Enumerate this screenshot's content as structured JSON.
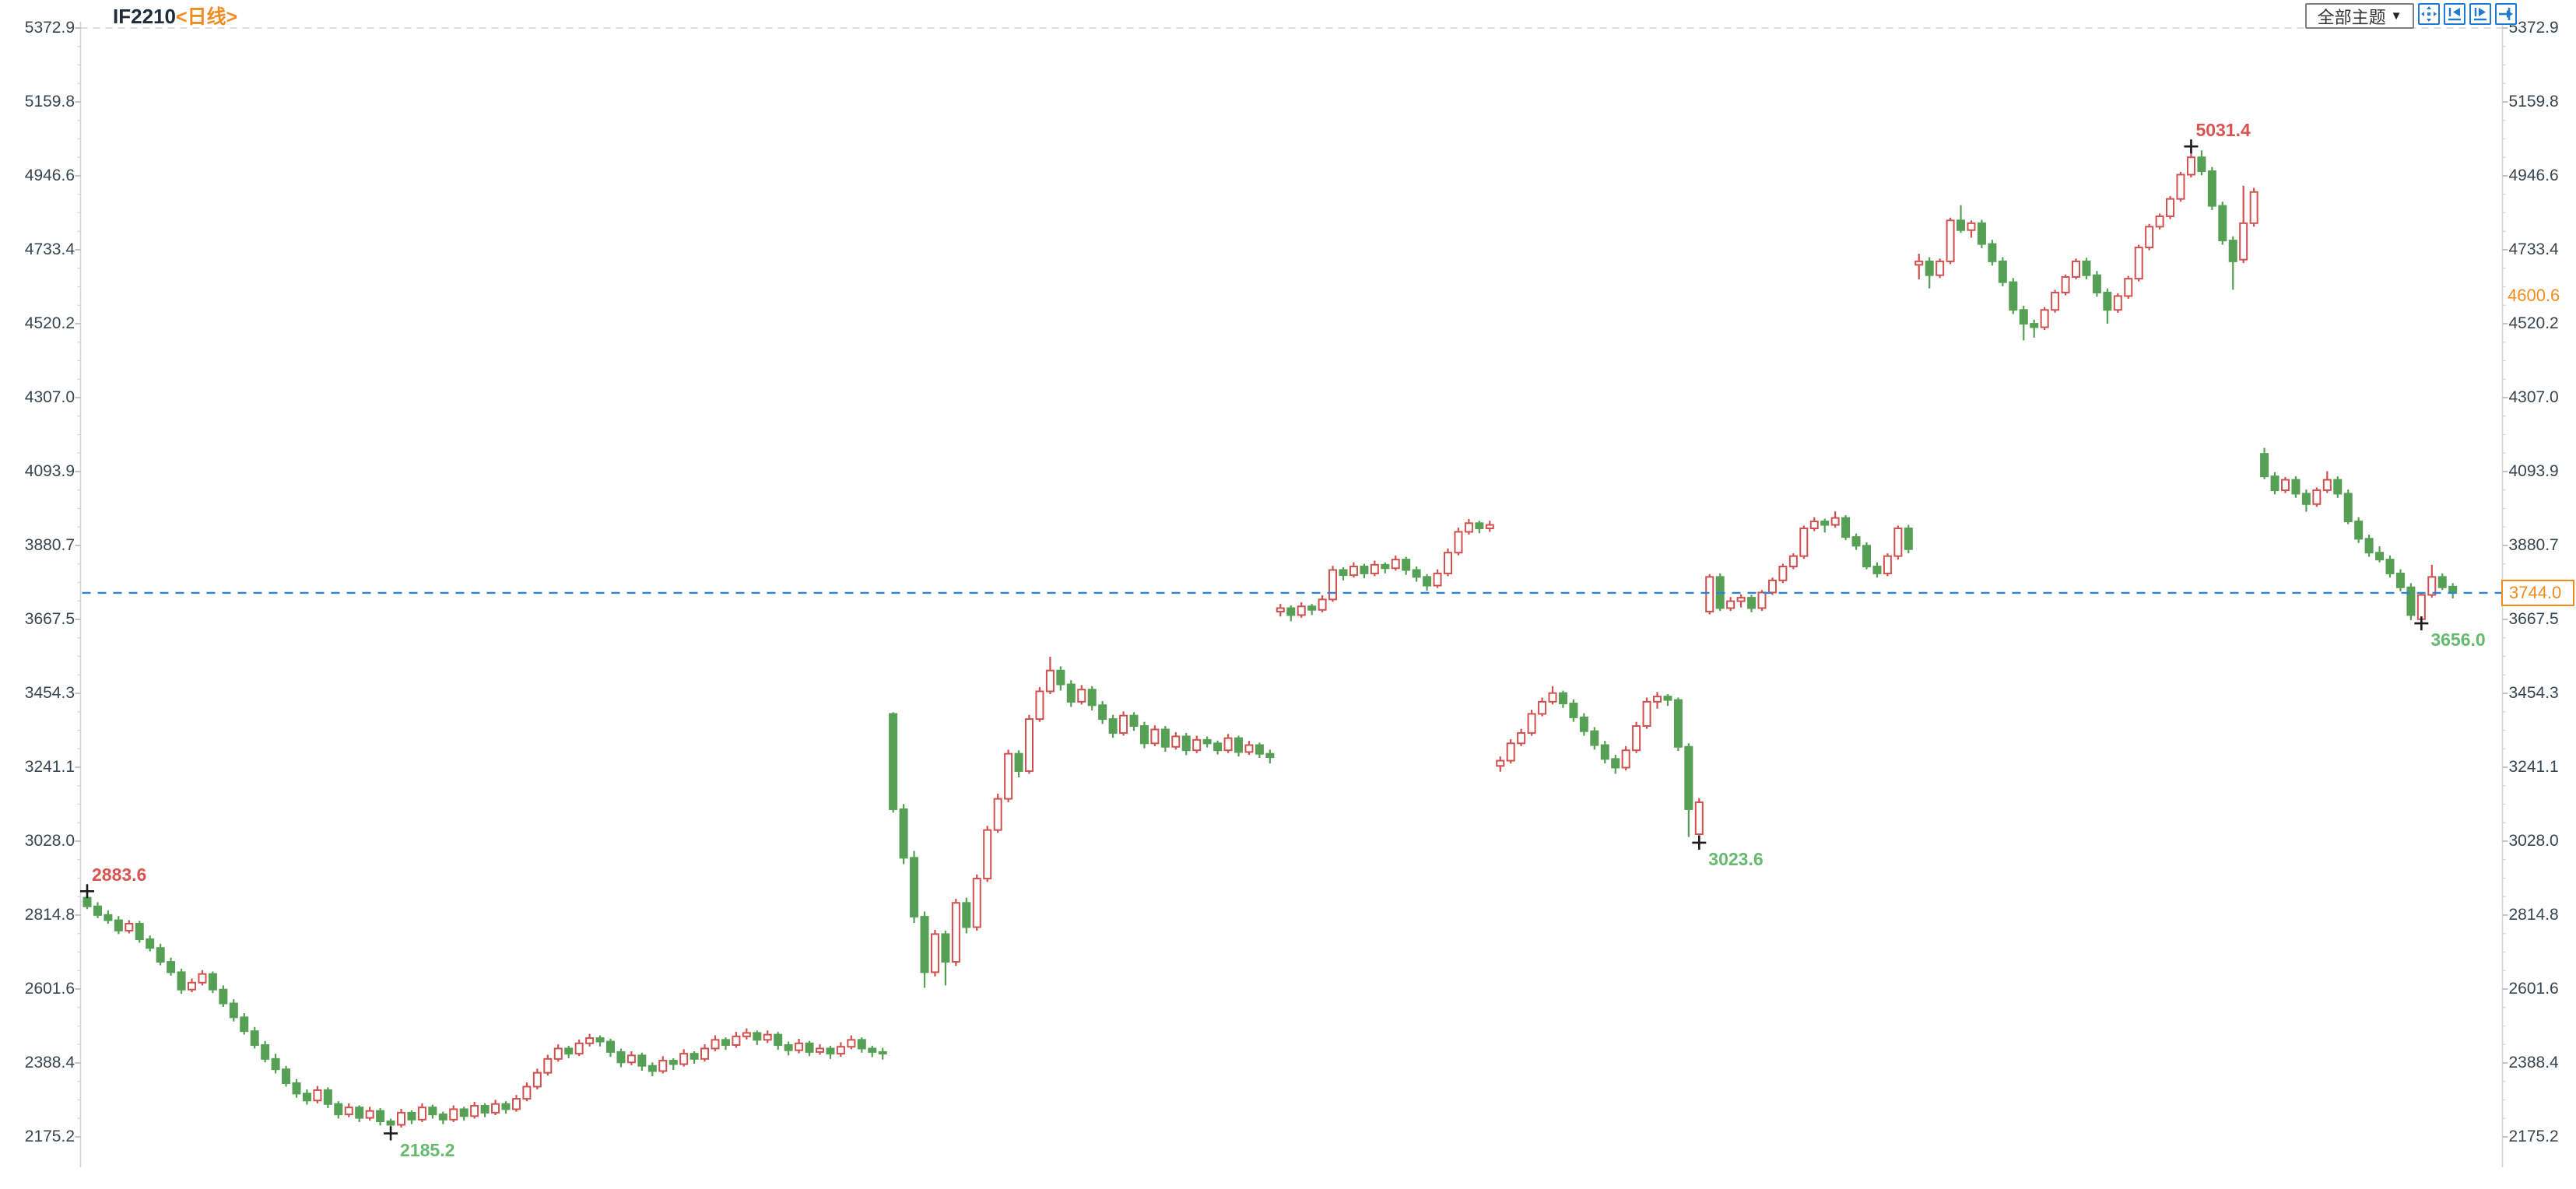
{
  "header": {
    "symbol": "IF2210",
    "period_label": "<日线>"
  },
  "toolbar": {
    "theme_dropdown_label": "全部主题",
    "dropdown_arrow": "▼",
    "icons": [
      {
        "name": "center-view-icon"
      },
      {
        "name": "jump-to-start-icon"
      },
      {
        "name": "step-forward-icon"
      },
      {
        "name": "jump-to-end-icon"
      }
    ]
  },
  "colors": {
    "up": "#d0514f",
    "down": "#55a055",
    "axis_text": "#36454f",
    "axis_line": "#d6d6d6",
    "grid_dash": "#cfcfcf",
    "current_line": "#2a84dc",
    "accent_orange": "#f08c1e",
    "anno_red": "#d9534f",
    "anno_green": "#66b96e",
    "marker": "#1a1a1a"
  },
  "axis": {
    "tick_labels": [
      "5372.9",
      "5159.8",
      "4946.6",
      "4733.4",
      "4520.2",
      "4307.0",
      "4093.9",
      "3880.7",
      "3667.5",
      "3454.3",
      "3241.1",
      "3028.0",
      "2814.8",
      "2601.6",
      "2388.4",
      "2175.2"
    ],
    "extra_labels": [
      {
        "text": "4600.6",
        "value": 4600.6
      }
    ]
  },
  "current_price": {
    "label": "3744.0",
    "value": 3744.0
  },
  "annotations": [
    {
      "text": "2883.6",
      "value": 2883.6,
      "index": 0,
      "kind": "high",
      "color": "red"
    },
    {
      "text": "2185.2",
      "value": 2185.2,
      "index": 29,
      "kind": "low",
      "color": "green"
    },
    {
      "text": "3023.6",
      "value": 3023.6,
      "index": 154,
      "kind": "low",
      "color": "green"
    },
    {
      "text": "5031.4",
      "value": 5031.4,
      "index": 201,
      "kind": "high",
      "color": "red"
    },
    {
      "text": "3656.0",
      "value": 3656.0,
      "index": 223,
      "kind": "low",
      "color": "green"
    }
  ],
  "chart_data": {
    "type": "candlestick",
    "title": "IF2210 日线",
    "ylim": [
      2175.2,
      5372.9
    ],
    "y_ticks": [
      5372.9,
      5159.8,
      4946.6,
      4733.4,
      4520.2,
      4307.0,
      4093.9,
      3880.7,
      3667.5,
      3454.3,
      3241.1,
      3028.0,
      2814.8,
      2601.6,
      2388.4,
      2175.2
    ],
    "grid": "top-dashed-only",
    "legend": "none",
    "candles": [
      [
        2865,
        2883.6,
        2832,
        2840
      ],
      [
        2840,
        2852,
        2806,
        2815
      ],
      [
        2815,
        2828,
        2790,
        2800
      ],
      [
        2800,
        2812,
        2760,
        2770
      ],
      [
        2770,
        2800,
        2762,
        2790
      ],
      [
        2790,
        2798,
        2735,
        2745
      ],
      [
        2745,
        2756,
        2710,
        2720
      ],
      [
        2720,
        2732,
        2670,
        2680
      ],
      [
        2680,
        2692,
        2640,
        2650
      ],
      [
        2650,
        2660,
        2588,
        2600
      ],
      [
        2600,
        2632,
        2592,
        2620
      ],
      [
        2620,
        2656,
        2612,
        2645
      ],
      [
        2645,
        2652,
        2590,
        2600
      ],
      [
        2600,
        2612,
        2550,
        2560
      ],
      [
        2560,
        2572,
        2508,
        2520
      ],
      [
        2520,
        2532,
        2470,
        2480
      ],
      [
        2480,
        2492,
        2430,
        2440
      ],
      [
        2440,
        2452,
        2390,
        2400
      ],
      [
        2400,
        2415,
        2358,
        2370
      ],
      [
        2370,
        2380,
        2320,
        2330
      ],
      [
        2330,
        2342,
        2288,
        2300
      ],
      [
        2300,
        2312,
        2268,
        2280
      ],
      [
        2280,
        2322,
        2272,
        2310
      ],
      [
        2310,
        2318,
        2258,
        2270
      ],
      [
        2270,
        2278,
        2228,
        2240
      ],
      [
        2240,
        2272,
        2232,
        2260
      ],
      [
        2260,
        2266,
        2218,
        2230
      ],
      [
        2230,
        2262,
        2222,
        2250
      ],
      [
        2250,
        2258,
        2208,
        2220
      ],
      [
        2220,
        2228,
        2185.2,
        2210
      ],
      [
        2210,
        2256,
        2202,
        2245
      ],
      [
        2245,
        2252,
        2212,
        2225
      ],
      [
        2225,
        2272,
        2218,
        2260
      ],
      [
        2260,
        2268,
        2228,
        2240
      ],
      [
        2240,
        2248,
        2212,
        2225
      ],
      [
        2225,
        2266,
        2218,
        2255
      ],
      [
        2255,
        2262,
        2222,
        2235
      ],
      [
        2235,
        2276,
        2228,
        2265
      ],
      [
        2265,
        2272,
        2232,
        2245
      ],
      [
        2245,
        2282,
        2238,
        2270
      ],
      [
        2270,
        2278,
        2242,
        2255
      ],
      [
        2255,
        2296,
        2248,
        2285
      ],
      [
        2285,
        2332,
        2278,
        2320
      ],
      [
        2320,
        2372,
        2312,
        2360
      ],
      [
        2360,
        2412,
        2352,
        2400
      ],
      [
        2400,
        2442,
        2392,
        2430
      ],
      [
        2430,
        2438,
        2402,
        2415
      ],
      [
        2415,
        2456,
        2408,
        2445
      ],
      [
        2445,
        2472,
        2436,
        2460
      ],
      [
        2460,
        2468,
        2436,
        2450
      ],
      [
        2450,
        2458,
        2406,
        2420
      ],
      [
        2420,
        2430,
        2376,
        2390
      ],
      [
        2390,
        2422,
        2382,
        2410
      ],
      [
        2410,
        2418,
        2366,
        2380
      ],
      [
        2380,
        2390,
        2350,
        2365
      ],
      [
        2365,
        2408,
        2358,
        2395
      ],
      [
        2395,
        2402,
        2368,
        2385
      ],
      [
        2385,
        2428,
        2378,
        2415
      ],
      [
        2415,
        2422,
        2386,
        2400
      ],
      [
        2400,
        2442,
        2392,
        2430
      ],
      [
        2430,
        2468,
        2422,
        2455
      ],
      [
        2455,
        2462,
        2426,
        2440
      ],
      [
        2440,
        2478,
        2432,
        2465
      ],
      [
        2465,
        2488,
        2456,
        2475
      ],
      [
        2475,
        2482,
        2440,
        2455
      ],
      [
        2455,
        2482,
        2446,
        2470
      ],
      [
        2470,
        2478,
        2426,
        2440
      ],
      [
        2440,
        2450,
        2410,
        2425
      ],
      [
        2425,
        2458,
        2416,
        2445
      ],
      [
        2445,
        2452,
        2408,
        2420
      ],
      [
        2420,
        2442,
        2412,
        2430
      ],
      [
        2430,
        2438,
        2400,
        2415
      ],
      [
        2415,
        2448,
        2406,
        2435
      ],
      [
        2435,
        2468,
        2428,
        2455
      ],
      [
        2455,
        2462,
        2418,
        2430
      ],
      [
        2430,
        2438,
        2405,
        2420
      ],
      [
        2420,
        2432,
        2398,
        2415
      ],
      [
        3395,
        3400,
        3110,
        3120
      ],
      [
        3120,
        3135,
        2962,
        2980
      ],
      [
        2980,
        3000,
        2792,
        2810
      ],
      [
        2810,
        2825,
        2605,
        2650
      ],
      [
        2650,
        2772,
        2638,
        2760
      ],
      [
        2760,
        2770,
        2612,
        2680
      ],
      [
        2680,
        2862,
        2668,
        2850
      ],
      [
        2850,
        2865,
        2762,
        2780
      ],
      [
        2780,
        2932,
        2770,
        2920
      ],
      [
        2920,
        3072,
        2910,
        3060
      ],
      [
        3060,
        3165,
        3052,
        3150
      ],
      [
        3150,
        3292,
        3140,
        3280
      ],
      [
        3280,
        3290,
        3212,
        3230
      ],
      [
        3230,
        3392,
        3222,
        3380
      ],
      [
        3380,
        3472,
        3372,
        3460
      ],
      [
        3460,
        3560,
        3452,
        3520
      ],
      [
        3520,
        3532,
        3462,
        3480
      ],
      [
        3480,
        3492,
        3415,
        3430
      ],
      [
        3430,
        3478,
        3422,
        3465
      ],
      [
        3465,
        3475,
        3405,
        3420
      ],
      [
        3420,
        3432,
        3366,
        3380
      ],
      [
        3380,
        3392,
        3326,
        3340
      ],
      [
        3340,
        3402,
        3332,
        3390
      ],
      [
        3390,
        3400,
        3346,
        3360
      ],
      [
        3360,
        3372,
        3296,
        3310
      ],
      [
        3310,
        3362,
        3302,
        3350
      ],
      [
        3350,
        3360,
        3286,
        3300
      ],
      [
        3300,
        3342,
        3292,
        3330
      ],
      [
        3330,
        3340,
        3276,
        3290
      ],
      [
        3290,
        3332,
        3282,
        3320
      ],
      [
        3320,
        3330,
        3298,
        3310
      ],
      [
        3310,
        3318,
        3278,
        3290
      ],
      [
        3290,
        3337,
        3282,
        3325
      ],
      [
        3325,
        3332,
        3272,
        3285
      ],
      [
        3285,
        3317,
        3277,
        3305
      ],
      [
        3305,
        3312,
        3268,
        3280
      ],
      [
        3280,
        3292,
        3252,
        3270
      ],
      [
        3690,
        3712,
        3676,
        3700
      ],
      [
        3700,
        3708,
        3662,
        3680
      ],
      [
        3680,
        3717,
        3672,
        3705
      ],
      [
        3705,
        3712,
        3680,
        3695
      ],
      [
        3695,
        3737,
        3688,
        3725
      ],
      [
        3725,
        3822,
        3718,
        3810
      ],
      [
        3810,
        3818,
        3780,
        3795
      ],
      [
        3795,
        3832,
        3788,
        3820
      ],
      [
        3820,
        3828,
        3786,
        3800
      ],
      [
        3800,
        3837,
        3792,
        3825
      ],
      [
        3825,
        3832,
        3800,
        3815
      ],
      [
        3815,
        3852,
        3808,
        3840
      ],
      [
        3840,
        3848,
        3796,
        3810
      ],
      [
        3810,
        3820,
        3776,
        3790
      ],
      [
        3790,
        3798,
        3750,
        3765
      ],
      [
        3765,
        3812,
        3758,
        3800
      ],
      [
        3800,
        3872,
        3792,
        3860
      ],
      [
        3860,
        3932,
        3852,
        3920
      ],
      [
        3920,
        3957,
        3912,
        3945
      ],
      [
        3945,
        3952,
        3916,
        3930
      ],
      [
        3930,
        3952,
        3920,
        3940
      ],
      [
        3245,
        3272,
        3228,
        3260
      ],
      [
        3260,
        3322,
        3252,
        3310
      ],
      [
        3310,
        3352,
        3302,
        3340
      ],
      [
        3340,
        3407,
        3332,
        3395
      ],
      [
        3395,
        3442,
        3388,
        3430
      ],
      [
        3430,
        3475,
        3422,
        3455
      ],
      [
        3455,
        3462,
        3412,
        3425
      ],
      [
        3425,
        3437,
        3372,
        3385
      ],
      [
        3385,
        3397,
        3332,
        3345
      ],
      [
        3345,
        3357,
        3292,
        3305
      ],
      [
        3305,
        3317,
        3252,
        3265
      ],
      [
        3265,
        3277,
        3222,
        3240
      ],
      [
        3240,
        3302,
        3232,
        3290
      ],
      [
        3290,
        3372,
        3282,
        3360
      ],
      [
        3360,
        3442,
        3352,
        3430
      ],
      [
        3430,
        3458,
        3410,
        3445
      ],
      [
        3445,
        3452,
        3418,
        3435
      ],
      [
        3435,
        3442,
        3288,
        3300
      ],
      [
        3300,
        3310,
        3040,
        3120
      ],
      [
        3048,
        3152,
        3023.6,
        3140
      ],
      [
        3690,
        3798,
        3682,
        3790
      ],
      [
        3790,
        3800,
        3692,
        3700
      ],
      [
        3700,
        3732,
        3692,
        3720
      ],
      [
        3720,
        3740,
        3702,
        3730
      ],
      [
        3730,
        3738,
        3688,
        3700
      ],
      [
        3700,
        3752,
        3692,
        3745
      ],
      [
        3745,
        3788,
        3738,
        3780
      ],
      [
        3780,
        3828,
        3772,
        3820
      ],
      [
        3820,
        3858,
        3812,
        3850
      ],
      [
        3850,
        3938,
        3842,
        3930
      ],
      [
        3930,
        3962,
        3922,
        3950
      ],
      [
        3950,
        3958,
        3918,
        3940
      ],
      [
        3940,
        3979,
        3932,
        3960
      ],
      [
        3960,
        3968,
        3896,
        3905
      ],
      [
        3905,
        3915,
        3868,
        3880
      ],
      [
        3880,
        3890,
        3812,
        3820
      ],
      [
        3820,
        3832,
        3788,
        3800
      ],
      [
        3800,
        3858,
        3792,
        3850
      ],
      [
        3850,
        3938,
        3840,
        3930
      ],
      [
        3930,
        3940,
        3858,
        3870
      ],
      [
        4690,
        4722,
        4648,
        4700
      ],
      [
        4700,
        4712,
        4622,
        4660
      ],
      [
        4660,
        4708,
        4652,
        4700
      ],
      [
        4700,
        4826,
        4692,
        4818
      ],
      [
        4818,
        4862,
        4782,
        4790
      ],
      [
        4790,
        4818,
        4768,
        4810
      ],
      [
        4810,
        4820,
        4738,
        4750
      ],
      [
        4750,
        4762,
        4688,
        4700
      ],
      [
        4700,
        4712,
        4628,
        4640
      ],
      [
        4640,
        4652,
        4548,
        4560
      ],
      [
        4560,
        4572,
        4472,
        4520
      ],
      [
        4520,
        4532,
        4480,
        4510
      ],
      [
        4510,
        4568,
        4502,
        4560
      ],
      [
        4560,
        4618,
        4552,
        4610
      ],
      [
        4610,
        4662,
        4602,
        4655
      ],
      [
        4655,
        4708,
        4648,
        4700
      ],
      [
        4700,
        4710,
        4648,
        4660
      ],
      [
        4660,
        4672,
        4598,
        4610
      ],
      [
        4610,
        4622,
        4520,
        4560
      ],
      [
        4560,
        4608,
        4552,
        4600
      ],
      [
        4600,
        4658,
        4592,
        4650
      ],
      [
        4650,
        4748,
        4642,
        4740
      ],
      [
        4740,
        4808,
        4732,
        4800
      ],
      [
        4800,
        4838,
        4792,
        4830
      ],
      [
        4830,
        4888,
        4822,
        4880
      ],
      [
        4880,
        4958,
        4872,
        4950
      ],
      [
        4950,
        5031.4,
        4942,
        5000
      ],
      [
        5000,
        5020,
        4948,
        4960
      ],
      [
        4960,
        4972,
        4848,
        4860
      ],
      [
        4860,
        4872,
        4748,
        4760
      ],
      [
        4760,
        4772,
        4618,
        4700
      ],
      [
        4705,
        4918,
        4695,
        4810
      ],
      [
        4810,
        4912,
        4800,
        4900
      ],
      [
        4145,
        4162,
        4072,
        4080
      ],
      [
        4080,
        4092,
        4028,
        4040
      ],
      [
        4040,
        4078,
        4032,
        4070
      ],
      [
        4070,
        4080,
        4018,
        4030
      ],
      [
        4030,
        4042,
        3978,
        4000
      ],
      [
        4000,
        4048,
        3992,
        4040
      ],
      [
        4040,
        4095,
        4032,
        4070
      ],
      [
        4070,
        4080,
        4018,
        4030
      ],
      [
        4030,
        4042,
        3942,
        3950
      ],
      [
        3950,
        3962,
        3888,
        3900
      ],
      [
        3900,
        3912,
        3848,
        3860
      ],
      [
        3860,
        3878,
        3832,
        3840
      ],
      [
        3840,
        3852,
        3788,
        3800
      ],
      [
        3800,
        3812,
        3748,
        3760
      ],
      [
        3760,
        3772,
        3665,
        3680
      ],
      [
        3668,
        3742,
        3656,
        3738
      ],
      [
        3738,
        3825,
        3730,
        3790
      ],
      [
        3790,
        3800,
        3752,
        3760
      ],
      [
        3762,
        3772,
        3728,
        3744
      ]
    ]
  },
  "layout_values": {
    "plot_top_value": 5372.9,
    "plot_bottom_value": 2175.2
  }
}
